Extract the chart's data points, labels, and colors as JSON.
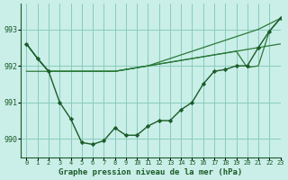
{
  "title": "Graphe pression niveau de la mer (hPa)",
  "bg_color": "#caeee8",
  "grid_color": "#88ccbb",
  "line_color_dark": "#1a5c28",
  "line_color_mid": "#2a7a38",
  "xlim": [
    -0.5,
    23
  ],
  "ylim": [
    989.5,
    993.7
  ],
  "yticks": [
    990,
    991,
    992,
    993
  ],
  "xtick_labels": [
    "0",
    "1",
    "2",
    "3",
    "4",
    "5",
    "6",
    "7",
    "8",
    "9",
    "10",
    "11",
    "12",
    "13",
    "14",
    "15",
    "16",
    "17",
    "18",
    "19",
    "20",
    "21",
    "22",
    "23"
  ],
  "hourly_data": [
    992.6,
    992.2,
    991.85,
    991.0,
    990.55,
    989.9,
    989.85,
    989.95,
    990.3,
    990.1,
    990.1,
    990.35,
    990.5,
    990.5,
    990.8,
    991.0,
    991.5,
    991.85,
    991.9,
    992.0,
    992.0,
    992.5,
    992.95,
    993.3
  ],
  "flat_line": [
    991.85,
    991.85,
    991.85,
    991.85,
    991.85,
    991.85,
    991.85,
    991.85,
    991.85,
    991.9,
    991.95,
    992.0,
    992.05,
    992.1,
    992.15,
    992.2,
    992.25,
    992.3,
    992.35,
    992.4,
    992.45,
    992.5,
    992.55,
    992.6
  ],
  "diag_line1": [
    992.6,
    992.2,
    991.85,
    991.85,
    991.85,
    991.85,
    991.85,
    991.85,
    991.85,
    991.9,
    991.95,
    992.0,
    992.1,
    992.2,
    992.3,
    992.4,
    992.5,
    992.6,
    992.7,
    992.8,
    992.9,
    993.0,
    993.15,
    993.3
  ],
  "diag_line2": [
    992.6,
    992.2,
    991.85,
    991.85,
    991.85,
    991.85,
    991.85,
    991.85,
    991.85,
    991.9,
    991.95,
    992.0,
    992.05,
    992.1,
    992.15,
    992.2,
    992.25,
    992.3,
    992.35,
    992.4,
    991.95,
    992.0,
    992.95,
    993.3
  ]
}
